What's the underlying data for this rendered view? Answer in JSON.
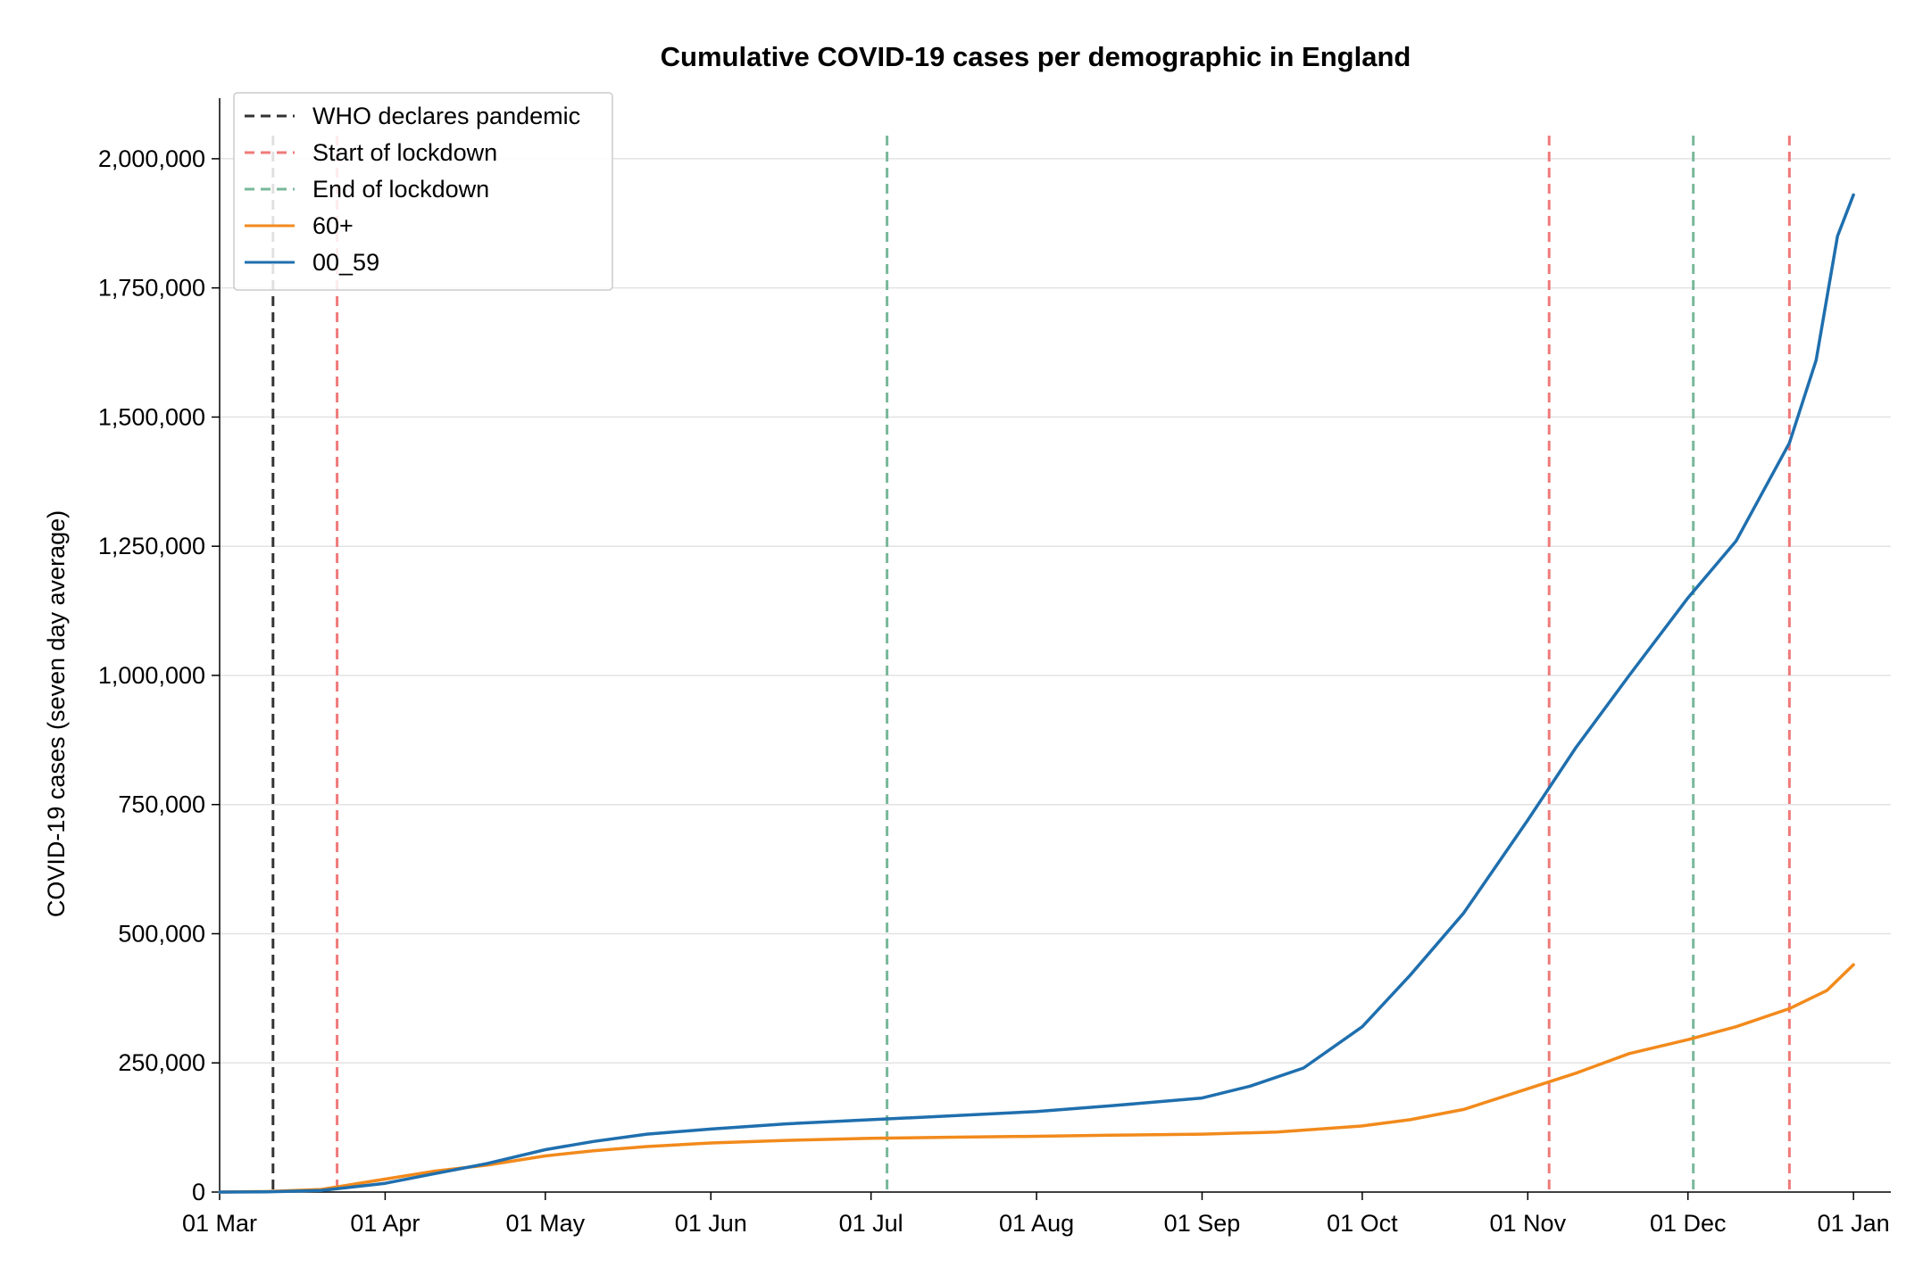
{
  "chart_data": {
    "type": "line",
    "title": "Cumulative COVID-19 cases per demographic in England",
    "xlabel": "",
    "ylabel": "COVID-19 cases (seven day average)",
    "x_tick_labels": [
      "01 Mar",
      "01 Apr",
      "01 May",
      "01 Jun",
      "01 Jul",
      "01 Aug",
      "01 Sep",
      "01 Oct",
      "01 Nov",
      "01 Dec",
      "01 Jan"
    ],
    "x_tick_dates": [
      "2020-03-01",
      "2020-04-01",
      "2020-05-01",
      "2020-06-01",
      "2020-07-01",
      "2020-08-01",
      "2020-09-01",
      "2020-10-01",
      "2020-11-01",
      "2020-12-01",
      "2021-01-01"
    ],
    "y_ticks": [
      0,
      250000,
      500000,
      750000,
      1000000,
      1250000,
      1500000,
      1750000,
      2000000
    ],
    "y_tick_labels": [
      "0",
      "250,000",
      "500,000",
      "750,000",
      "1,000,000",
      "1,250,000",
      "1,500,000",
      "1,750,000",
      "2,000,000"
    ],
    "xlim": [
      "2020-03-01",
      "2021-01-08"
    ],
    "ylim": [
      0,
      2100000
    ],
    "grid": "horizontal",
    "legend_position": "top-left",
    "events": [
      {
        "name": "WHO declares pandemic",
        "dates": [
          "2020-03-11"
        ],
        "color": "#333333"
      },
      {
        "name": "Start of lockdown",
        "dates": [
          "2020-03-23",
          "2020-11-05",
          "2020-12-20"
        ],
        "color": "#f07a7a"
      },
      {
        "name": "End of lockdown",
        "dates": [
          "2020-07-04",
          "2020-12-02"
        ],
        "color": "#78b89a"
      }
    ],
    "series": [
      {
        "name": "60+",
        "color": "#f28a1c",
        "x": [
          "2020-03-01",
          "2020-03-10",
          "2020-03-20",
          "2020-04-01",
          "2020-04-10",
          "2020-04-20",
          "2020-05-01",
          "2020-05-10",
          "2020-05-20",
          "2020-06-01",
          "2020-06-15",
          "2020-07-01",
          "2020-07-15",
          "2020-08-01",
          "2020-08-15",
          "2020-09-01",
          "2020-09-15",
          "2020-10-01",
          "2020-10-10",
          "2020-10-20",
          "2020-11-01",
          "2020-11-10",
          "2020-11-20",
          "2020-12-01",
          "2020-12-10",
          "2020-12-20",
          "2020-12-27",
          "2021-01-01"
        ],
        "values": [
          0,
          1000,
          5000,
          25000,
          40000,
          52000,
          70000,
          80000,
          88000,
          95000,
          100000,
          104000,
          106000,
          108000,
          110000,
          112000,
          116000,
          128000,
          140000,
          160000,
          200000,
          230000,
          268000,
          295000,
          320000,
          355000,
          390000,
          440000
        ]
      },
      {
        "name": "00_59",
        "color": "#1f6fae",
        "x": [
          "2020-03-01",
          "2020-03-10",
          "2020-03-20",
          "2020-04-01",
          "2020-04-10",
          "2020-04-20",
          "2020-05-01",
          "2020-05-10",
          "2020-05-20",
          "2020-06-01",
          "2020-06-15",
          "2020-07-01",
          "2020-07-15",
          "2020-08-01",
          "2020-08-15",
          "2020-09-01",
          "2020-09-10",
          "2020-09-20",
          "2020-10-01",
          "2020-10-10",
          "2020-10-20",
          "2020-11-01",
          "2020-11-10",
          "2020-11-20",
          "2020-12-01",
          "2020-12-10",
          "2020-12-20",
          "2020-12-25",
          "2020-12-29",
          "2021-01-01"
        ],
        "values": [
          0,
          500,
          3000,
          17000,
          35000,
          55000,
          82000,
          98000,
          112000,
          122000,
          132000,
          140000,
          147000,
          156000,
          167000,
          182000,
          205000,
          240000,
          320000,
          420000,
          540000,
          720000,
          860000,
          1000000,
          1150000,
          1260000,
          1450000,
          1610000,
          1850000,
          1930000
        ]
      }
    ]
  }
}
